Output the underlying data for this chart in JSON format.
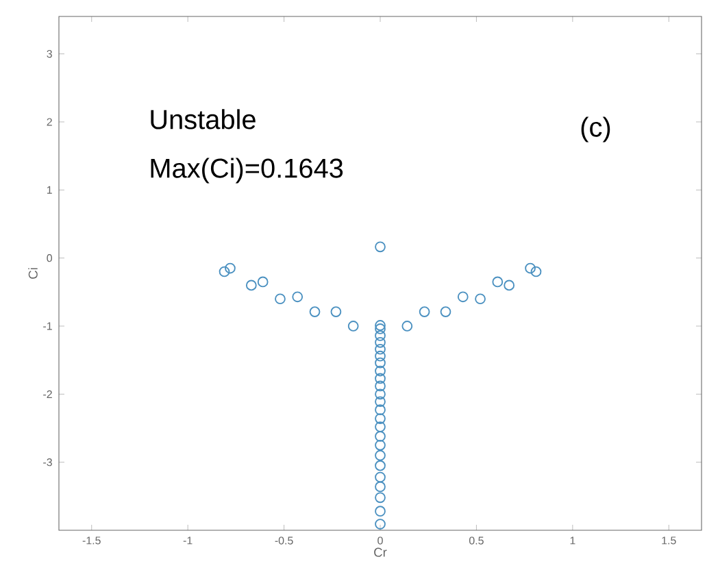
{
  "chart_data": {
    "type": "scatter",
    "xlabel": "Cr",
    "ylabel": "Ci",
    "annotations": [
      "Unstable",
      "Max(Ci)=0.1643",
      "(c)"
    ],
    "x": [
      -0.81,
      -0.78,
      -0.67,
      -0.61,
      -0.52,
      -0.43,
      -0.34,
      -0.23,
      -0.14,
      0,
      0.14,
      0.23,
      0.34,
      0.43,
      0.52,
      0.61,
      0.67,
      0.78,
      0.81,
      0,
      0,
      0,
      0,
      0,
      0,
      0,
      0,
      0,
      0,
      0,
      0,
      0,
      0,
      0,
      0,
      0,
      0,
      0,
      0,
      0,
      0,
      0,
      0
    ],
    "values": [
      -0.2,
      -0.15,
      -0.4,
      -0.35,
      -0.6,
      -0.57,
      -0.79,
      -0.79,
      -1.0,
      0.1643,
      -1.0,
      -0.79,
      -0.79,
      -0.57,
      -0.6,
      -0.35,
      -0.4,
      -0.15,
      -0.2,
      -0.99,
      -1.04,
      -1.14,
      -1.24,
      -1.34,
      -1.44,
      -1.54,
      -1.66,
      -1.77,
      -1.88,
      -2.0,
      -2.11,
      -2.23,
      -2.36,
      -2.48,
      -2.62,
      -2.75,
      -2.9,
      -3.05,
      -3.22,
      -3.36,
      -3.52,
      -3.72,
      -3.91
    ],
    "color": "#4a90c0",
    "marker": "circle",
    "xlim": [
      -1.67,
      1.67
    ],
    "ylim": [
      -4,
      3.55
    ],
    "xticks": [
      -1.5,
      -1,
      -0.5,
      0,
      0.5,
      1,
      1.5
    ],
    "yticks": [
      -3,
      -2,
      -1,
      0,
      1,
      2,
      3
    ]
  }
}
